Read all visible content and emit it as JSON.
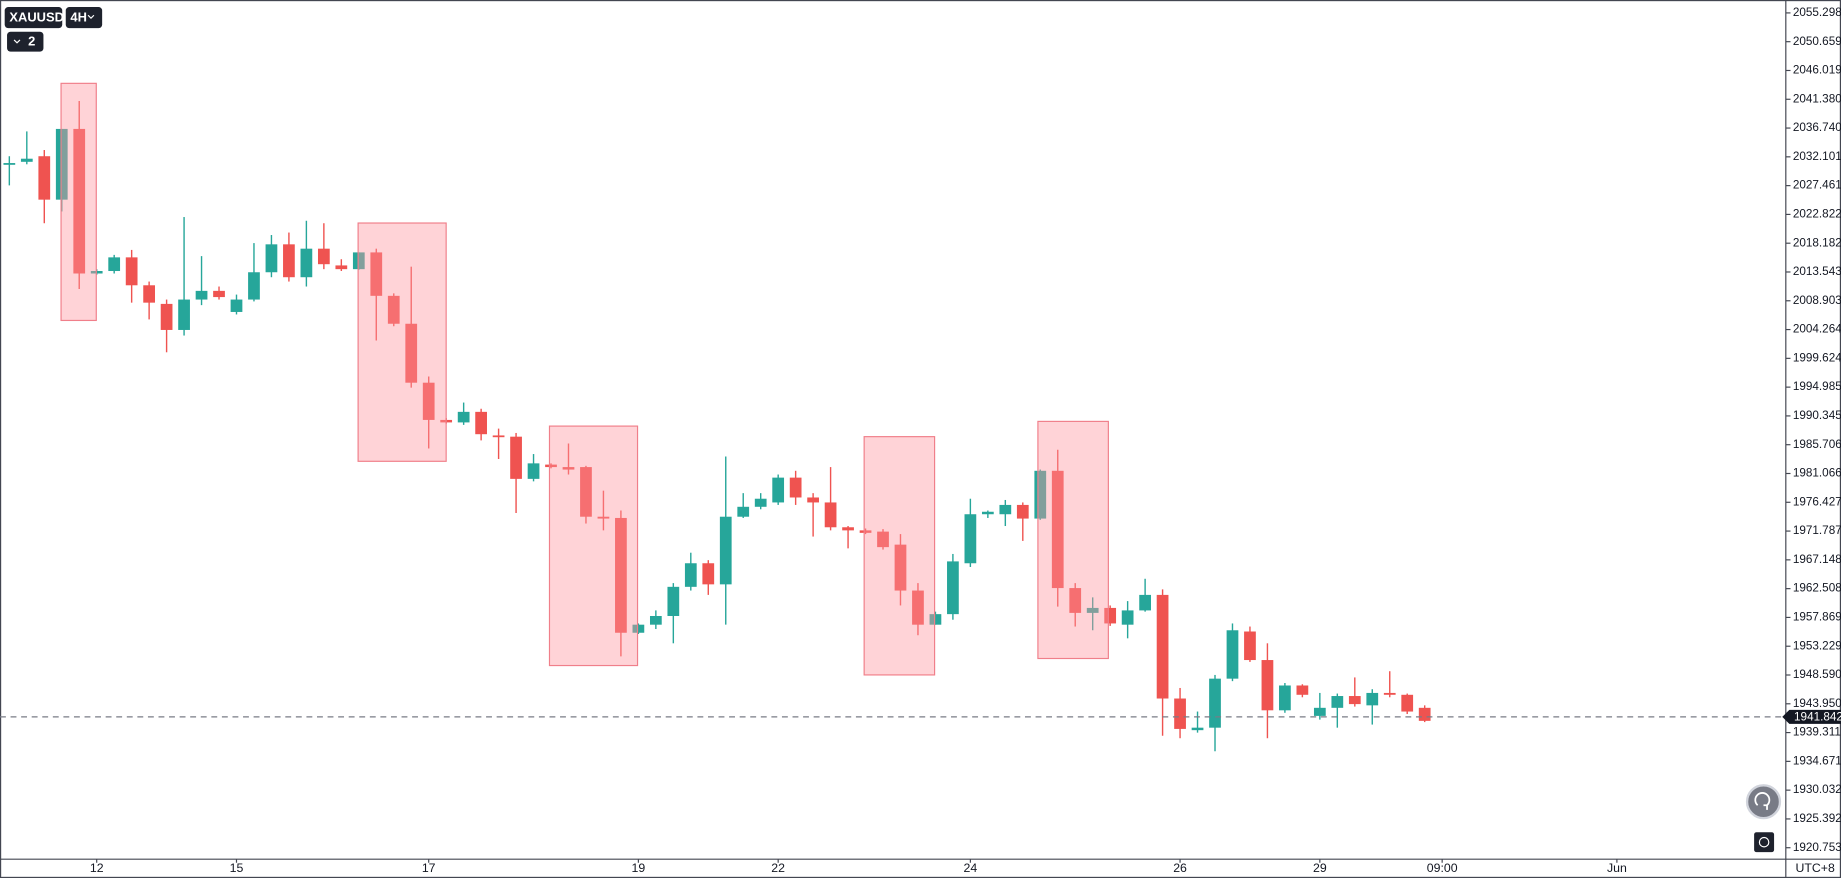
{
  "chart_data": {
    "type": "candlestick",
    "symbol": "XAUUSD",
    "interval": "4H",
    "indicator_count": "2",
    "timezone": "UTC+8",
    "up_color": "#26a69a",
    "down_color": "#ef5350",
    "open": [
      2030.9,
      2031.3,
      2032.2,
      2025.2,
      2036.6,
      2013.3,
      2013.7,
      2015.9,
      2011.4,
      2008.4,
      2004.2,
      2009.1,
      2010.5,
      2007.1,
      2009.1,
      2013.5,
      2018.0,
      2012.7,
      2017.3,
      2014.6,
      2014.0,
      2016.7,
      2009.7,
      2005.2,
      1995.7,
      1989.7,
      1989.3,
      1991.0,
      1987.2,
      1987.0,
      1980.2,
      1982.5,
      1982.1,
      1982.1,
      1974.1,
      1973.9,
      1955.4,
      1956.7,
      1958.1,
      1962.8,
      1966.6,
      1963.2,
      1974.1,
      1975.7,
      1976.4,
      1980.4,
      1977.2,
      1976.4,
      1972.4,
      1971.9,
      1971.7,
      1969.6,
      1962.2,
      1956.7,
      1958.4,
      1966.6,
      1974.5,
      1974.5,
      1976.0,
      1973.8,
      1981.5,
      1962.6,
      1958.6,
      1959.4,
      1956.7,
      1959.0,
      1961.5,
      1944.8,
      1939.7,
      1940.1,
      1948.0,
      1955.6,
      1951.0,
      1942.9,
      1946.9,
      1942.0,
      1943.3,
      1945.2,
      1943.7,
      1945.7,
      1945.4,
      1943.3
    ],
    "high": [
      2032.2,
      2036.2,
      2033.2,
      2036.6,
      2041.1,
      2014.0,
      2016.3,
      2017.1,
      2012.0,
      2009.1,
      2022.4,
      2016.1,
      2011.2,
      2009.9,
      2018.2,
      2019.5,
      2019.9,
      2021.8,
      2021.4,
      2015.6,
      2016.7,
      2017.3,
      2010.1,
      2014.4,
      1996.7,
      1990.0,
      1992.5,
      1991.5,
      1988.3,
      1987.6,
      1984.2,
      1982.7,
      1985.9,
      1982.3,
      1978.3,
      1975.1,
      1956.9,
      1959.0,
      1963.4,
      1968.3,
      1967.1,
      1983.8,
      1977.9,
      1977.9,
      1980.9,
      1981.5,
      1977.9,
      1982.1,
      1972.6,
      1972.2,
      1972.1,
      1971.3,
      1963.4,
      1958.8,
      1968.1,
      1977.0,
      1975.1,
      1976.8,
      1976.4,
      1981.7,
      1984.9,
      1963.4,
      1961.1,
      1959.8,
      1960.5,
      1964.1,
      1962.4,
      1946.5,
      1942.7,
      1948.6,
      1956.9,
      1956.4,
      1953.7,
      1947.3,
      1947.1,
      1945.7,
      1945.6,
      1948.2,
      1946.3,
      1949.2,
      1945.6,
      1943.7
    ],
    "low": [
      2027.5,
      2030.9,
      2021.4,
      2023.3,
      2010.8,
      2013.1,
      2013.3,
      2008.6,
      2005.9,
      2000.6,
      2003.3,
      2008.2,
      2009.1,
      2006.7,
      2008.8,
      2012.7,
      2012.0,
      2011.2,
      2014.0,
      2013.7,
      2013.9,
      2002.5,
      2004.8,
      1994.9,
      1985.1,
      1989.1,
      1988.9,
      1986.4,
      1983.4,
      1974.7,
      1979.8,
      1981.9,
      1980.9,
      1973.0,
      1971.9,
      1951.6,
      1955.2,
      1956.0,
      1953.7,
      1962.2,
      1961.5,
      1956.7,
      1973.9,
      1975.3,
      1976.0,
      1976.0,
      1970.9,
      1971.9,
      1969.0,
      1971.3,
      1968.8,
      1959.8,
      1955.0,
      1956.7,
      1957.5,
      1966.0,
      1973.9,
      1972.6,
      1970.2,
      1973.6,
      1959.6,
      1956.4,
      1955.8,
      1956.5,
      1954.5,
      1958.8,
      1938.8,
      1938.4,
      1939.3,
      1936.3,
      1947.6,
      1950.7,
      1938.4,
      1942.5,
      1945.0,
      1941.4,
      1940.1,
      1943.5,
      1940.6,
      1945.0,
      1942.3,
      1941.0
    ],
    "close": [
      2031.1,
      2031.8,
      2025.2,
      2036.6,
      2013.3,
      2013.7,
      2015.9,
      2011.4,
      2008.6,
      2004.2,
      2009.1,
      2010.5,
      2009.5,
      2009.1,
      2013.5,
      2018.0,
      2012.7,
      2017.3,
      2014.8,
      2014.0,
      2016.7,
      2009.7,
      2005.2,
      1995.7,
      1989.7,
      1989.3,
      1991.0,
      1987.4,
      1987.0,
      1980.2,
      1982.7,
      1982.1,
      1981.7,
      1974.1,
      1973.8,
      1955.4,
      1956.7,
      1958.1,
      1962.8,
      1966.6,
      1963.2,
      1974.1,
      1975.7,
      1977.0,
      1980.4,
      1977.2,
      1976.4,
      1972.4,
      1971.9,
      1971.5,
      1969.2,
      1962.2,
      1956.7,
      1958.4,
      1966.9,
      1974.5,
      1974.9,
      1976.0,
      1973.8,
      1981.5,
      1962.6,
      1958.6,
      1959.4,
      1956.9,
      1959.0,
      1961.5,
      1944.8,
      1939.9,
      1940.1,
      1948.0,
      1955.8,
      1951.0,
      1942.9,
      1946.9,
      1945.4,
      1943.3,
      1945.2,
      1943.9,
      1945.7,
      1945.4,
      1942.7,
      1941.2
    ],
    "last_price": 1941.842,
    "xlim": [
      -0.4,
      101.6
    ],
    "xticks": [
      {
        "value": 5,
        "label": "12"
      },
      {
        "value": 13,
        "label": "15"
      },
      {
        "value": 24,
        "label": "17"
      },
      {
        "value": 36,
        "label": "19"
      },
      {
        "value": 44,
        "label": "22"
      },
      {
        "value": 55,
        "label": "24"
      },
      {
        "value": 67,
        "label": "26"
      },
      {
        "value": 75,
        "label": "29"
      },
      {
        "value": 82,
        "label": "09:00"
      },
      {
        "value": 92,
        "label": "Jun"
      }
    ],
    "ylim": [
      1918.9,
      2057.0
    ],
    "yticks": [
      2055.298,
      2050.659,
      2046.019,
      {
        "value": 2041.38,
        "label": "2041.380"
      },
      {
        "value": 2036.74,
        "label": "2036.740"
      },
      2032.101,
      2027.461,
      2022.822,
      2018.182,
      2013.543,
      2008.903,
      2004.264,
      1999.624,
      1994.985,
      1990.345,
      1985.706,
      1981.066,
      1976.427,
      1971.787,
      1967.148,
      1962.508,
      1957.869,
      1953.229,
      {
        "value": 1948.59,
        "label": "1948.590"
      },
      {
        "value": 1943.95,
        "label": "1943.950"
      },
      1939.311,
      1934.671,
      1930.032,
      1925.392,
      1920.753
    ]
  }
}
